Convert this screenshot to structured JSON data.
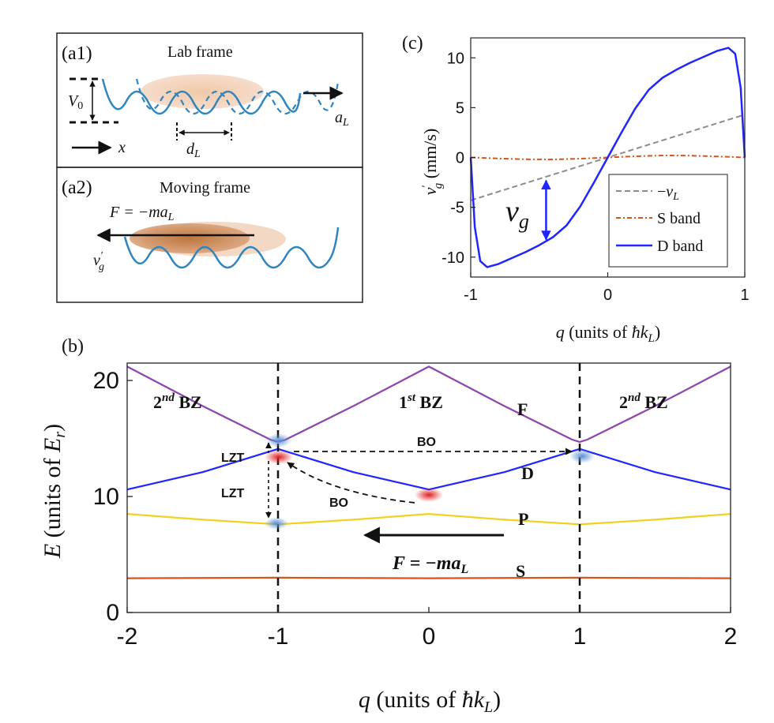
{
  "panel_a1": {
    "label": "(a1)",
    "title": "Lab frame",
    "v0_label": "V",
    "v0_sub": "0",
    "a_label": "a",
    "a_sub": "L",
    "x_label": "x",
    "d_label": "d",
    "d_sub": "L"
  },
  "panel_a2": {
    "label": "(a2)",
    "title": "Moving frame",
    "force_eq": "F = −ma",
    "force_sub": "L",
    "v_label": "v",
    "v_sub": "g",
    "v_sup": "′"
  },
  "panel_c": {
    "label": "(c)",
    "vg_label": "v",
    "vg_sub": "g",
    "legend": {
      "entries": [
        {
          "pre": "−",
          "main": "v",
          "sub": "L"
        },
        {
          "main": "S band"
        },
        {
          "main": "D band"
        }
      ]
    },
    "colors": {
      "neg_vl": "#8c8c8c",
      "s_band": "#d9541a",
      "d_band": "#1f26ff"
    }
  },
  "panel_b": {
    "label": "(b)",
    "bz": [
      {
        "num": "2",
        "sup": "nd",
        "txt": " BZ"
      },
      {
        "num": "1",
        "sup": "st",
        "txt": " BZ"
      },
      {
        "num": "2",
        "sup": "nd",
        "txt": " BZ"
      }
    ],
    "band_labels": {
      "F": "F",
      "D": "D",
      "P": "P",
      "S": "S"
    },
    "arrows": {
      "bo_top": "BO",
      "bo_bottom": "BO",
      "lzt_top": "LZT",
      "lzt_bottom": "LZT"
    },
    "force_eq": "F = −ma",
    "force_sub": "L",
    "colors": {
      "F": "#8e44ad",
      "D": "#1f26ff",
      "P": "#f0d020",
      "S": "#d9541a"
    }
  },
  "chart_data": [
    {
      "type": "line",
      "panel": "(c)",
      "title": "",
      "xlabel": "q (units of ħk_L)",
      "ylabel": "v′_g (mm/s)",
      "xlim": [
        -1,
        1
      ],
      "ylim": [
        -12,
        12
      ],
      "xticks": [
        -1,
        0,
        1
      ],
      "yticks": [
        -10,
        -5,
        0,
        5,
        10
      ],
      "grid": false,
      "legend_position": "bottom-right",
      "series": [
        {
          "name": "−v_L",
          "style": "dashed",
          "x": [
            -1,
            1
          ],
          "y": [
            -4.3,
            4.3
          ]
        },
        {
          "name": "S band",
          "style": "dash-dot",
          "x": [
            -1,
            -0.8,
            -0.6,
            -0.4,
            -0.2,
            0,
            0.2,
            0.4,
            0.6,
            0.8,
            1
          ],
          "y": [
            0,
            -0.1,
            -0.18,
            -0.2,
            -0.12,
            0,
            0.12,
            0.2,
            0.18,
            0.1,
            0
          ]
        },
        {
          "name": "D band",
          "style": "solid",
          "x": [
            -1,
            -0.97,
            -0.93,
            -0.88,
            -0.8,
            -0.7,
            -0.6,
            -0.5,
            -0.4,
            -0.3,
            -0.2,
            -0.1,
            0,
            0.1,
            0.2,
            0.3,
            0.4,
            0.5,
            0.6,
            0.7,
            0.8,
            0.88,
            0.93,
            0.97,
            1
          ],
          "y": [
            0,
            -7,
            -10.4,
            -11,
            -10.7,
            -10.1,
            -9.5,
            -8.8,
            -8.0,
            -6.8,
            -4.9,
            -2.5,
            0,
            2.5,
            4.9,
            6.8,
            8.0,
            8.8,
            9.5,
            10.1,
            10.7,
            11,
            10.4,
            7,
            0
          ]
        }
      ],
      "annotation": "v_g"
    },
    {
      "type": "line",
      "panel": "(b)",
      "title": "",
      "xlabel": "q (units of ħk_L)",
      "ylabel": "E (units of E_r)",
      "xlim": [
        -2,
        2
      ],
      "ylim": [
        0,
        21.5
      ],
      "xticks": [
        -2,
        -1,
        0,
        1,
        2
      ],
      "yticks": [
        0,
        10,
        20
      ],
      "grid": false,
      "series": [
        {
          "name": "F",
          "x": [
            -2,
            -1.5,
            -1.05,
            -1,
            -0.95,
            -0.5,
            0,
            0.5,
            0.95,
            1,
            1.05,
            1.5,
            2
          ],
          "y": [
            21.2,
            17.8,
            14.9,
            14.7,
            14.9,
            17.8,
            21.2,
            17.8,
            14.9,
            14.7,
            14.9,
            17.8,
            21.2
          ]
        },
        {
          "name": "D",
          "x": [
            -2,
            -1.5,
            -1.05,
            -1,
            -0.95,
            -0.5,
            0,
            0.5,
            0.95,
            1,
            1.05,
            1.5,
            2
          ],
          "y": [
            10.6,
            12.1,
            13.9,
            14.1,
            13.9,
            12.1,
            10.6,
            12.1,
            13.9,
            14.1,
            13.9,
            12.1,
            10.6
          ]
        },
        {
          "name": "P",
          "x": [
            -2,
            -1.5,
            -1,
            -0.5,
            0,
            0.5,
            1,
            1.5,
            2
          ],
          "y": [
            8.5,
            8.0,
            7.6,
            8.0,
            8.5,
            8.0,
            7.6,
            8.0,
            8.5
          ]
        },
        {
          "name": "S",
          "x": [
            -2,
            -1,
            0,
            1,
            2
          ],
          "y": [
            2.95,
            3.0,
            2.95,
            3.0,
            2.95
          ]
        }
      ]
    }
  ]
}
